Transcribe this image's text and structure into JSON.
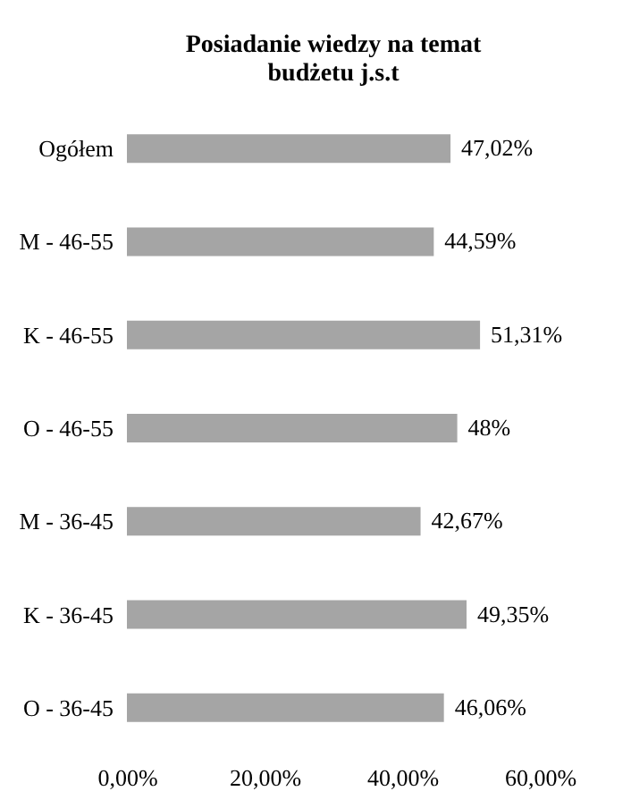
{
  "chart_data": {
    "type": "bar",
    "orientation": "horizontal",
    "title": "Posiadanie wiedzy na temat budżetu j.s.t",
    "categories": [
      "Ogółem",
      "M - 46-55",
      "K - 46-55",
      "O - 46-55",
      "M - 36-45",
      "K - 36-45",
      "O - 36-45"
    ],
    "values": [
      47.02,
      44.59,
      51.31,
      48,
      42.67,
      49.35,
      46.06
    ],
    "value_labels": [
      "47,02%",
      "44,59%",
      "51,31%",
      "48%",
      "42,67%",
      "49,35%",
      "46,06%"
    ],
    "color": "#a5a5a5",
    "xlim": [
      0,
      60
    ],
    "xticks": [
      {
        "value": 0,
        "label": "0,00%"
      },
      {
        "value": 20,
        "label": "20,00%"
      },
      {
        "value": 40,
        "label": "40,00%"
      },
      {
        "value": 60,
        "label": "60,00%"
      }
    ],
    "grid": false
  }
}
